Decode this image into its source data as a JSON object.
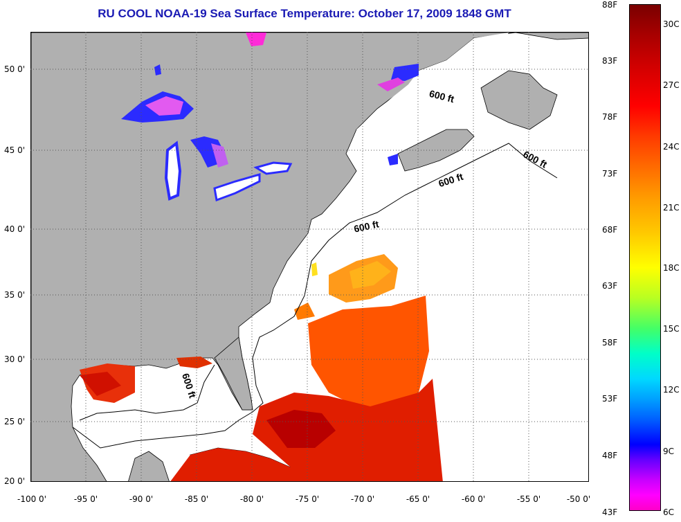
{
  "title": "RU COOL  NOAA-19  Sea Surface Temperature:  October 17, 2009 1848 GMT",
  "latitude_labels": [
    "50 0'",
    "45 0'",
    "40 0'",
    "35 0'",
    "30 0'",
    "25 0'",
    "20 0'"
  ],
  "longitude_labels": [
    "-100 0'",
    "-95 0'",
    "-90 0'",
    "-85 0'",
    "-80 0'",
    "-75 0'",
    "-70 0'",
    "-65 0'",
    "-60 0'",
    "-55 0'",
    "-50 0'"
  ],
  "isobath_labels": [
    "600 ft",
    "600 ft",
    "600 ft",
    "600 ft",
    "600 ft"
  ],
  "colorbar": {
    "fahrenheit_labels": [
      "88F",
      "83F",
      "78F",
      "73F",
      "68F",
      "63F",
      "58F",
      "53F",
      "48F",
      "43F"
    ],
    "celsius_labels": [
      "30C",
      "27C",
      "24C",
      "21C",
      "18C",
      "15C",
      "12C",
      "9C",
      "6C"
    ],
    "range_f": [
      43,
      88
    ],
    "range_c": [
      6,
      31
    ]
  },
  "colors": {
    "land": "#b0b0b0",
    "title": "#1a1ab4",
    "warm": "#d01000",
    "mid": "#ff7a00",
    "cool": "#2b2bff",
    "coldest": "#ff00ff"
  }
}
